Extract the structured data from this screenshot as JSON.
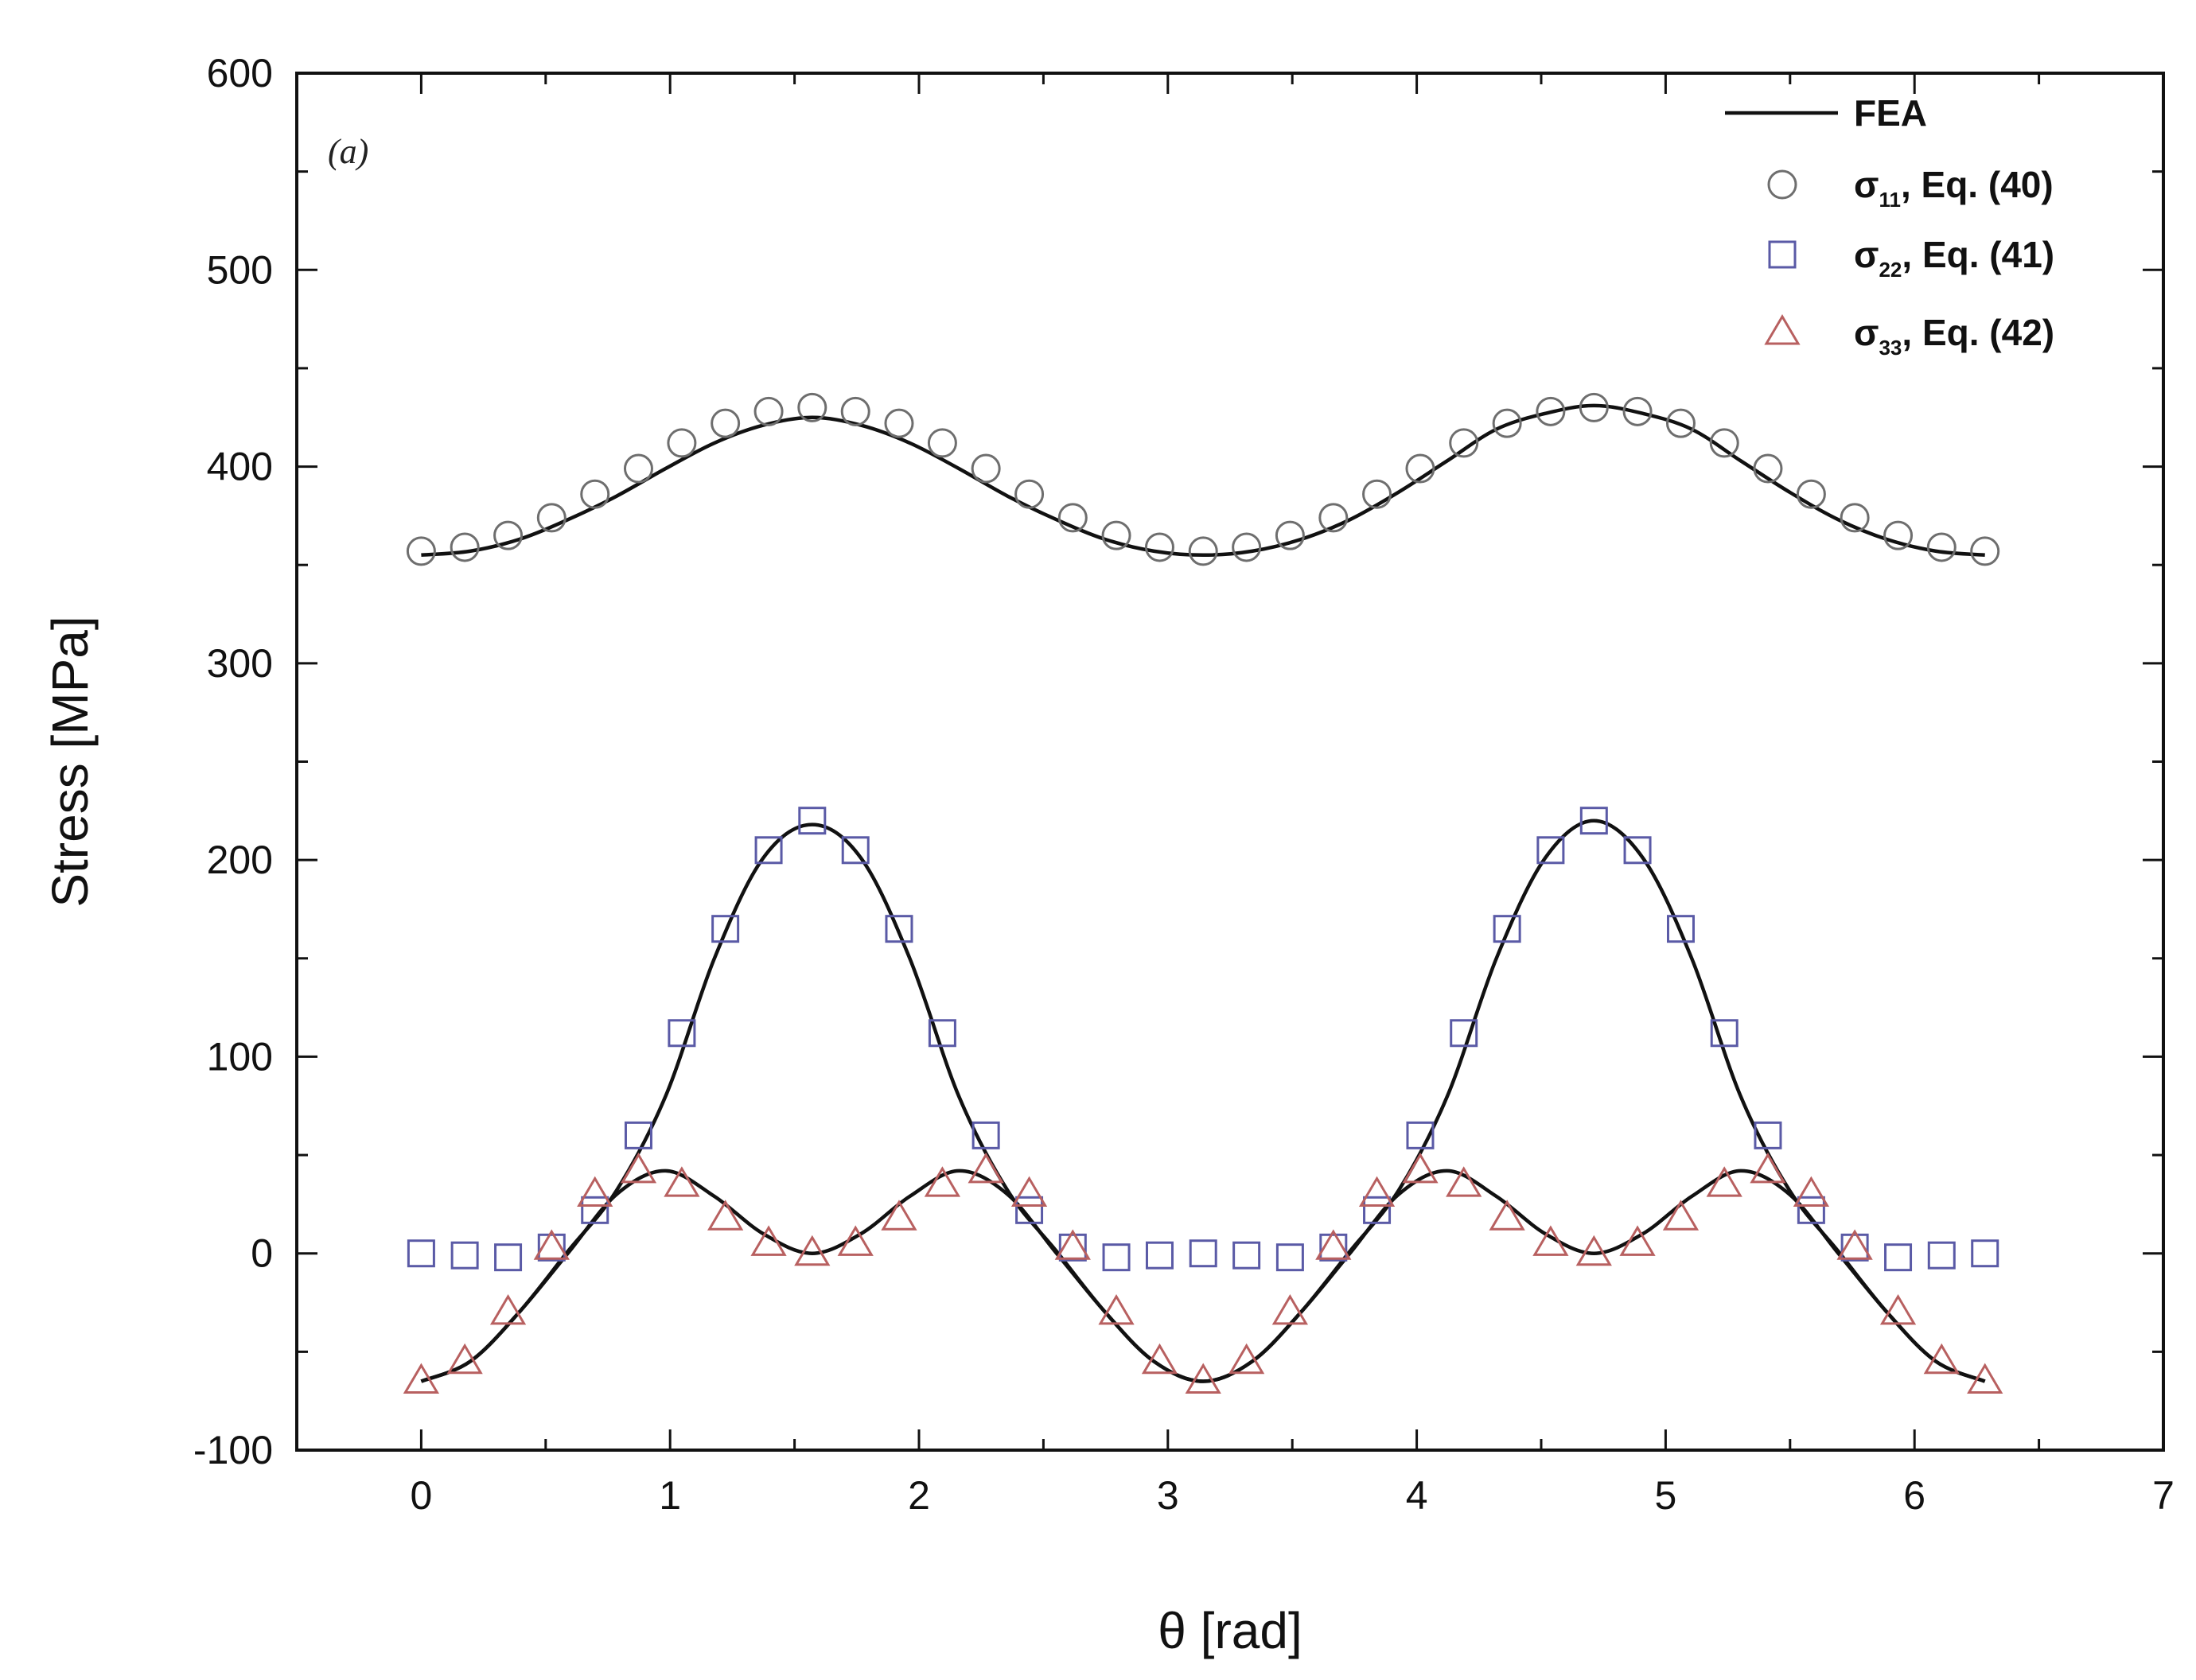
{
  "chart_data": {
    "type": "line",
    "panel_label": "(a)",
    "xlabel": "θ [rad]",
    "ylabel": "Stress [MPa]",
    "xlim": [
      -0.5,
      7
    ],
    "ylim": [
      -100,
      600
    ],
    "xticks": [
      0,
      1,
      2,
      3,
      4,
      5,
      6,
      7
    ],
    "yticks": [
      -100,
      0,
      100,
      200,
      300,
      400,
      500,
      600
    ],
    "xtick_labels": [
      "0",
      "1",
      "2",
      "3",
      "4",
      "5",
      "6",
      "7"
    ],
    "ytick_labels": [
      "-100",
      "0",
      "100",
      "200",
      "300",
      "400",
      "500",
      "600"
    ],
    "grid": false,
    "legend_position": "top-right",
    "legend": [
      {
        "marker": "line",
        "main": "FEA",
        "sub": "",
        "tail": ""
      },
      {
        "marker": "circle",
        "main": "σ",
        "sub": "11",
        "tail": ",  Eq. (40)"
      },
      {
        "marker": "square",
        "main": "σ",
        "sub": "22",
        "tail": ",  Eq. (41)"
      },
      {
        "marker": "triangle",
        "main": "σ",
        "sub": "33",
        "tail": ",  Eq. (42)"
      }
    ],
    "colors": {
      "fea": "#111111",
      "sigma11": "#6e6e6e",
      "sigma22": "#5a5aa6",
      "sigma33": "#b86060"
    },
    "series": [
      {
        "name": "FEA",
        "style": "line",
        "curves": [
          {
            "x": [
              0,
              0.196,
              0.393,
              0.589,
              0.785,
              0.982,
              1.178,
              1.374,
              1.571,
              1.767,
              1.963,
              2.16,
              2.356,
              2.553,
              2.749,
              2.945,
              3.142,
              3.338,
              3.534,
              3.731,
              3.927,
              4.123,
              4.32,
              4.516,
              4.712,
              4.909,
              5.105,
              5.301,
              5.498,
              5.694,
              5.89,
              6.087,
              6.283
            ],
            "y": [
              355,
              357,
              363,
              373,
              385,
              399,
              412,
              421,
              425,
              421,
              412,
              399,
              385,
              373,
              363,
              357,
              355,
              357,
              363,
              373,
              387,
              403,
              419,
              427,
              431,
              427,
              419,
              403,
              387,
              373,
              363,
              357,
              355
            ]
          },
          {
            "x": [
              0,
              0.196,
              0.393,
              0.589,
              0.785,
              0.982,
              1.178,
              1.374,
              1.571,
              1.767,
              1.963,
              2.16,
              2.356,
              2.553,
              2.749,
              2.945,
              3.142,
              3.338,
              3.534,
              3.731,
              3.927,
              4.123,
              4.32,
              4.516,
              4.712,
              4.909,
              5.105,
              5.301,
              5.498,
              5.694,
              5.89,
              6.087,
              6.283
            ],
            "y": [
              -65,
              -55,
              -30,
              1,
              32,
              80,
              150,
              201,
              218,
              201,
              150,
              80,
              32,
              1,
              -30,
              -55,
              -65,
              -55,
              -30,
              1,
              32,
              80,
              150,
              201,
              220,
              201,
              150,
              80,
              32,
              1,
              -30,
              -55,
              -65
            ]
          },
          {
            "x": [
              0,
              0.196,
              0.393,
              0.589,
              0.785,
              0.982,
              1.178,
              1.374,
              1.571,
              1.767,
              1.963,
              2.16,
              2.356,
              2.553,
              2.749,
              2.945,
              3.142,
              3.338,
              3.534,
              3.731,
              3.927,
              4.123,
              4.32,
              4.516,
              4.712,
              4.909,
              5.105,
              5.301,
              5.498,
              5.694,
              5.89,
              6.087,
              6.283
            ],
            "y": [
              -65,
              -55,
              -30,
              0,
              30,
              42,
              29,
              10,
              0,
              10,
              29,
              42,
              30,
              0,
              -30,
              -55,
              -65,
              -55,
              -30,
              0,
              30,
              42,
              29,
              10,
              0,
              10,
              29,
              42,
              30,
              0,
              -30,
              -55,
              -65
            ]
          }
        ]
      },
      {
        "name": "σ11, Eq. (40)",
        "marker": "circle",
        "x": [
          0,
          0.175,
          0.349,
          0.524,
          0.698,
          0.873,
          1.047,
          1.222,
          1.396,
          1.571,
          1.745,
          1.92,
          2.094,
          2.269,
          2.443,
          2.618,
          2.793,
          2.967,
          3.142,
          3.316,
          3.491,
          3.665,
          3.84,
          4.014,
          4.189,
          4.363,
          4.538,
          4.712,
          4.887,
          5.061,
          5.236,
          5.411,
          5.585,
          5.76,
          5.934,
          6.109,
          6.283
        ],
        "y": [
          357,
          359,
          365,
          374,
          386,
          399,
          412,
          422,
          428,
          430,
          428,
          422,
          412,
          399,
          386,
          374,
          365,
          359,
          357,
          359,
          365,
          374,
          386,
          399,
          412,
          422,
          428,
          430,
          428,
          422,
          412,
          399,
          386,
          374,
          365,
          359,
          357
        ]
      },
      {
        "name": "σ22, Eq. (41)",
        "marker": "square",
        "x": [
          0,
          0.175,
          0.349,
          0.524,
          0.698,
          0.873,
          1.047,
          1.222,
          1.396,
          1.571,
          1.745,
          1.92,
          2.094,
          2.269,
          2.443,
          2.618,
          2.793,
          2.967,
          3.142,
          3.316,
          3.491,
          3.665,
          3.84,
          4.014,
          4.189,
          4.363,
          4.538,
          4.712,
          4.887,
          5.061,
          5.236,
          5.411,
          5.585,
          5.76,
          5.934,
          6.109,
          6.283
        ],
        "y": [
          0,
          -1,
          -2,
          3,
          22,
          60,
          112,
          165,
          205,
          220,
          205,
          165,
          112,
          60,
          22,
          3,
          -2,
          -1,
          0,
          -1,
          -2,
          3,
          22,
          60,
          112,
          165,
          205,
          220,
          205,
          165,
          112,
          60,
          22,
          3,
          -2,
          -1,
          0
        ]
      },
      {
        "name": "σ33, Eq. (42)",
        "marker": "triangle",
        "x": [
          0,
          0.175,
          0.349,
          0.524,
          0.698,
          0.873,
          1.047,
          1.222,
          1.396,
          1.571,
          1.745,
          1.92,
          2.094,
          2.269,
          2.443,
          2.618,
          2.793,
          2.967,
          3.142,
          3.316,
          3.491,
          3.665,
          3.84,
          4.014,
          4.189,
          4.363,
          4.538,
          4.712,
          4.887,
          5.061,
          5.236,
          5.411,
          5.585,
          5.76,
          5.934,
          6.109,
          6.283
        ],
        "y": [
          -65,
          -55,
          -30,
          3,
          30,
          42,
          35,
          18,
          5,
          0,
          5,
          18,
          35,
          42,
          30,
          3,
          -30,
          -55,
          -65,
          -55,
          -30,
          3,
          30,
          42,
          35,
          18,
          5,
          0,
          5,
          18,
          35,
          42,
          30,
          3,
          -30,
          -55,
          -65
        ]
      }
    ]
  }
}
